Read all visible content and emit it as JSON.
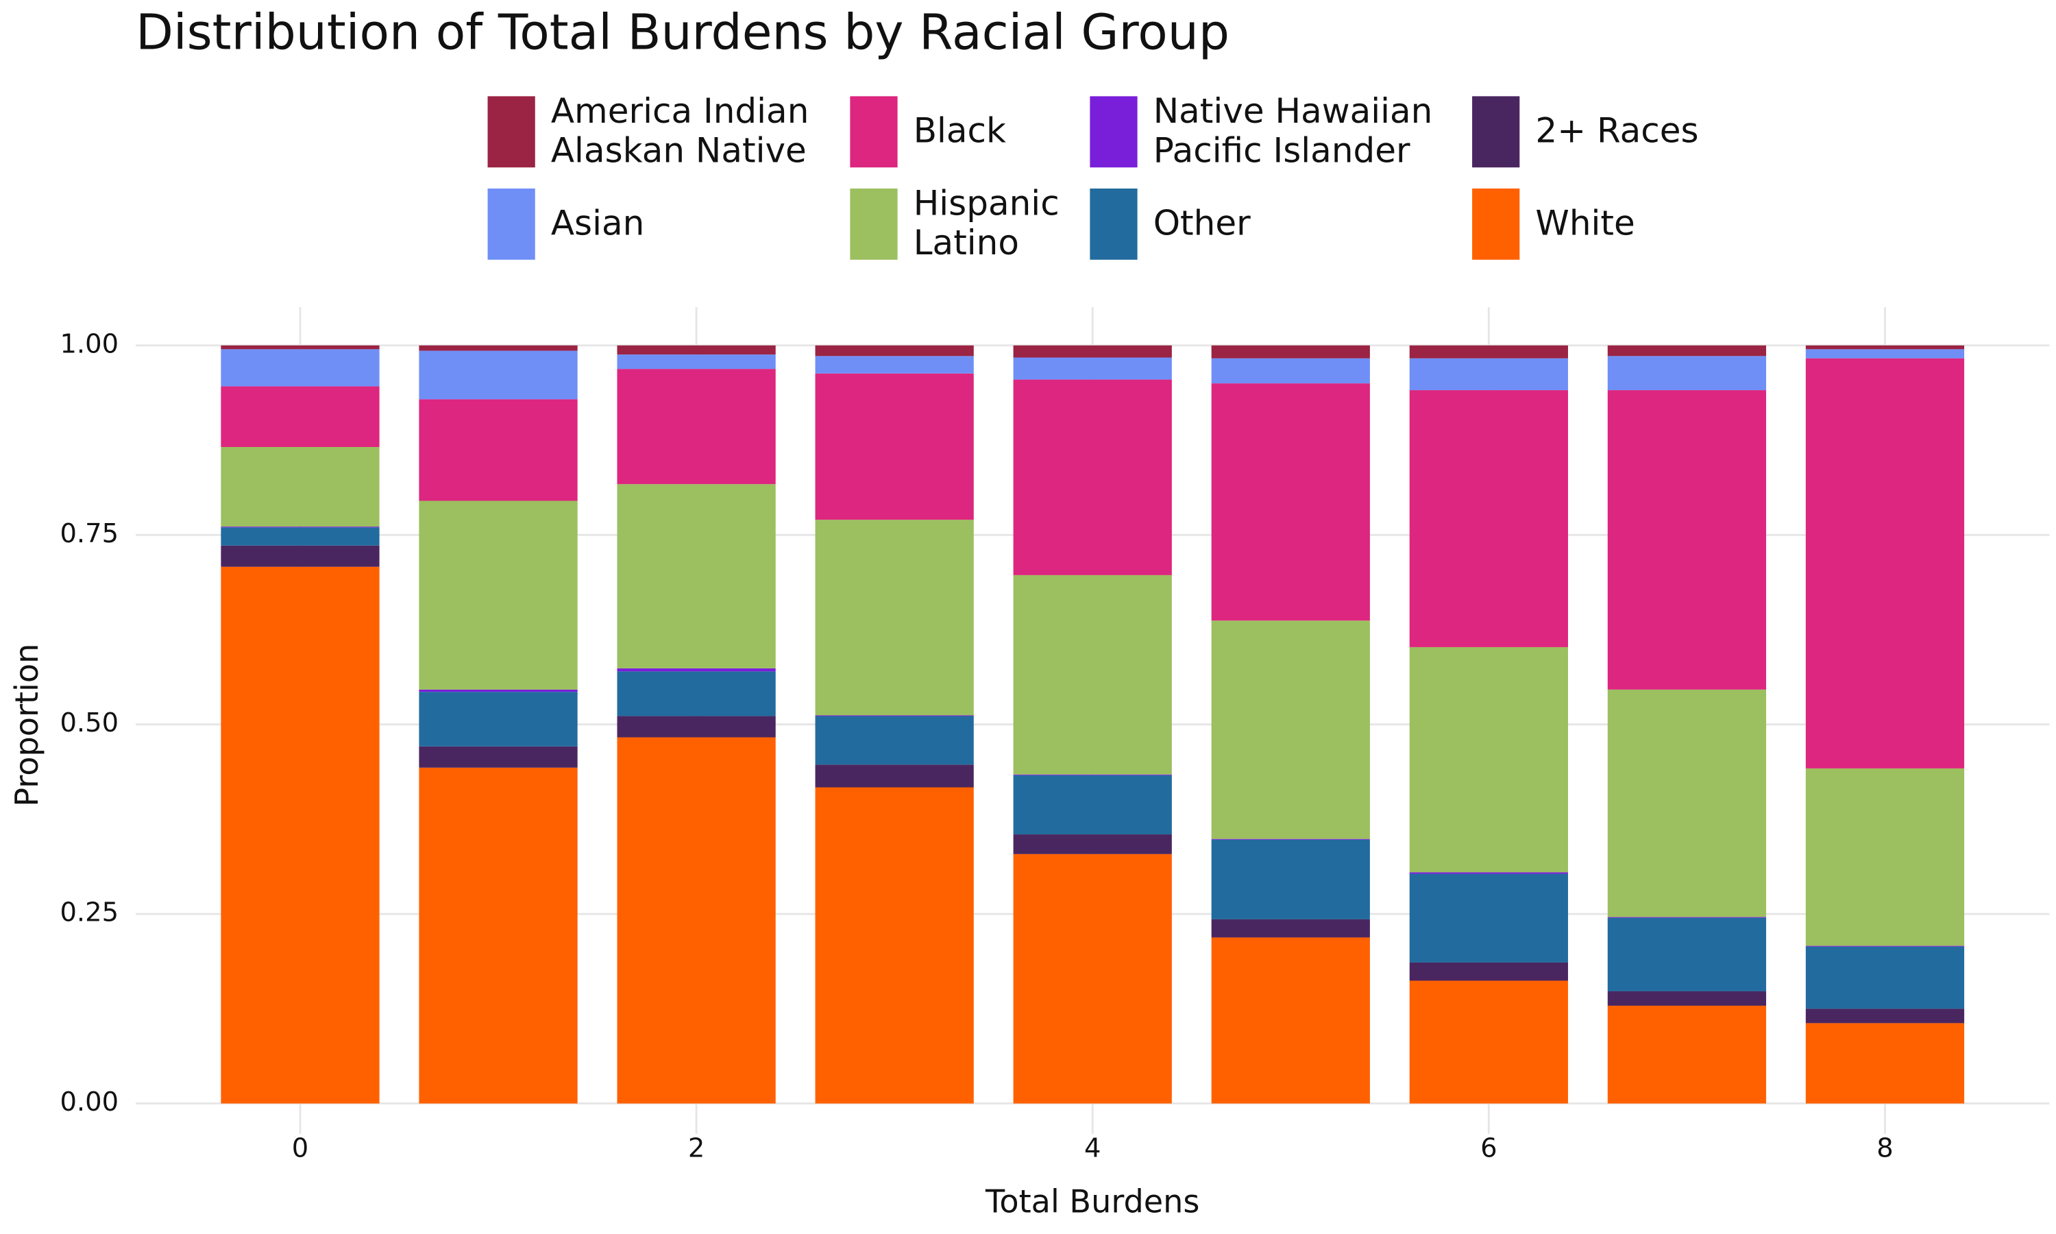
{
  "chart_data": {
    "type": "stacked_bar",
    "title": "Distribution of Total Burdens by Racial Group",
    "x_label": "Total Burdens",
    "y_label": "Proportion",
    "x": [
      0,
      1,
      2,
      3,
      4,
      5,
      6,
      7,
      8
    ],
    "series": [
      {
        "name": "America Indian\nAlaskan Native",
        "color": "#9b2343",
        "values": [
          0.005,
          0.007,
          0.012,
          0.014,
          0.016,
          0.017,
          0.017,
          0.014,
          0.005
        ]
      },
      {
        "name": "Asian",
        "color": "#6f8ff7",
        "values": [
          0.049,
          0.064,
          0.019,
          0.023,
          0.029,
          0.033,
          0.042,
          0.045,
          0.012
        ]
      },
      {
        "name": "Black",
        "color": "#dd267f",
        "values": [
          0.08,
          0.134,
          0.152,
          0.193,
          0.258,
          0.313,
          0.339,
          0.395,
          0.541
        ]
      },
      {
        "name": "Hispanic\nLatino",
        "color": "#9cbf5f",
        "values": [
          0.105,
          0.249,
          0.243,
          0.258,
          0.263,
          0.288,
          0.297,
          0.3,
          0.234
        ]
      },
      {
        "name": "Native Hawaiian\nPacific Islander",
        "color": "#7a1fd9",
        "values": [
          0.001,
          0.003,
          0.004,
          0.001,
          0.001,
          0.001,
          0.002,
          0.001,
          0.001
        ]
      },
      {
        "name": "Other",
        "color": "#226b9e",
        "values": [
          0.024,
          0.072,
          0.059,
          0.064,
          0.078,
          0.105,
          0.117,
          0.097,
          0.082
        ]
      },
      {
        "name": "2+ Races",
        "color": "#4a2660",
        "values": [
          0.028,
          0.028,
          0.028,
          0.03,
          0.026,
          0.024,
          0.024,
          0.019,
          0.019
        ]
      },
      {
        "name": "White",
        "color": "#ff6100",
        "values": [
          0.708,
          0.443,
          0.483,
          0.417,
          0.329,
          0.219,
          0.162,
          0.129,
          0.106
        ]
      }
    ],
    "xlim": [
      -0.83,
      8.83
    ],
    "xticks": [
      0,
      2,
      4,
      6,
      8
    ],
    "ylim": [
      0,
      1
    ],
    "yticks": [
      {
        "value": 0,
        "label": "0.00"
      },
      {
        "value": 0.25,
        "label": "0.25"
      },
      {
        "value": 0.5,
        "label": "0.50"
      },
      {
        "value": 0.75,
        "label": "0.75"
      },
      {
        "value": 1,
        "label": "1.00"
      }
    ],
    "grid": true,
    "legend": "top"
  }
}
